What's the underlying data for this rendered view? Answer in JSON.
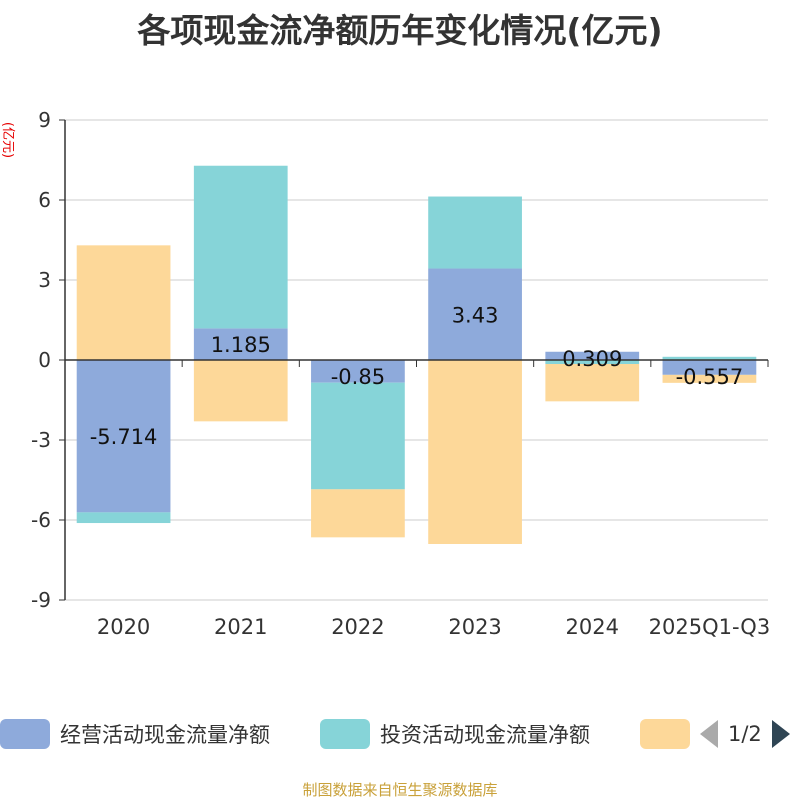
{
  "chart_data": {
    "type": "bar",
    "stacked": true,
    "title": "各项现金流净额历年变化情况(亿元)",
    "ylabel": "(亿元)",
    "ylim": [
      -9,
      9
    ],
    "yticks": [
      9,
      6,
      3,
      0,
      -3,
      -6,
      -9
    ],
    "categories": [
      "2020",
      "2021",
      "2022",
      "2023",
      "2024",
      "2025Q1-Q3"
    ],
    "series": [
      {
        "name": "经营活动现金流量净额",
        "color": "#8eaadb",
        "values": [
          -5.714,
          1.185,
          -0.85,
          3.43,
          0.309,
          -0.557
        ],
        "labels": [
          "-5.714",
          "1.185",
          "-0.85",
          "3.43",
          "0.309",
          "-0.557"
        ]
      },
      {
        "name": "投资活动现金流量净额",
        "color": "#86d4d8",
        "values": [
          -0.4,
          6.1,
          -4.0,
          2.7,
          -0.15,
          0.12
        ]
      },
      {
        "name": "",
        "color": "#fdd899",
        "values": [
          4.3,
          -2.3,
          -1.8,
          -6.9,
          -1.4,
          -0.3
        ]
      }
    ],
    "grid": true
  },
  "legend": {
    "page_text": "1/2"
  },
  "source": "制图数据来自恒生聚源数据库"
}
